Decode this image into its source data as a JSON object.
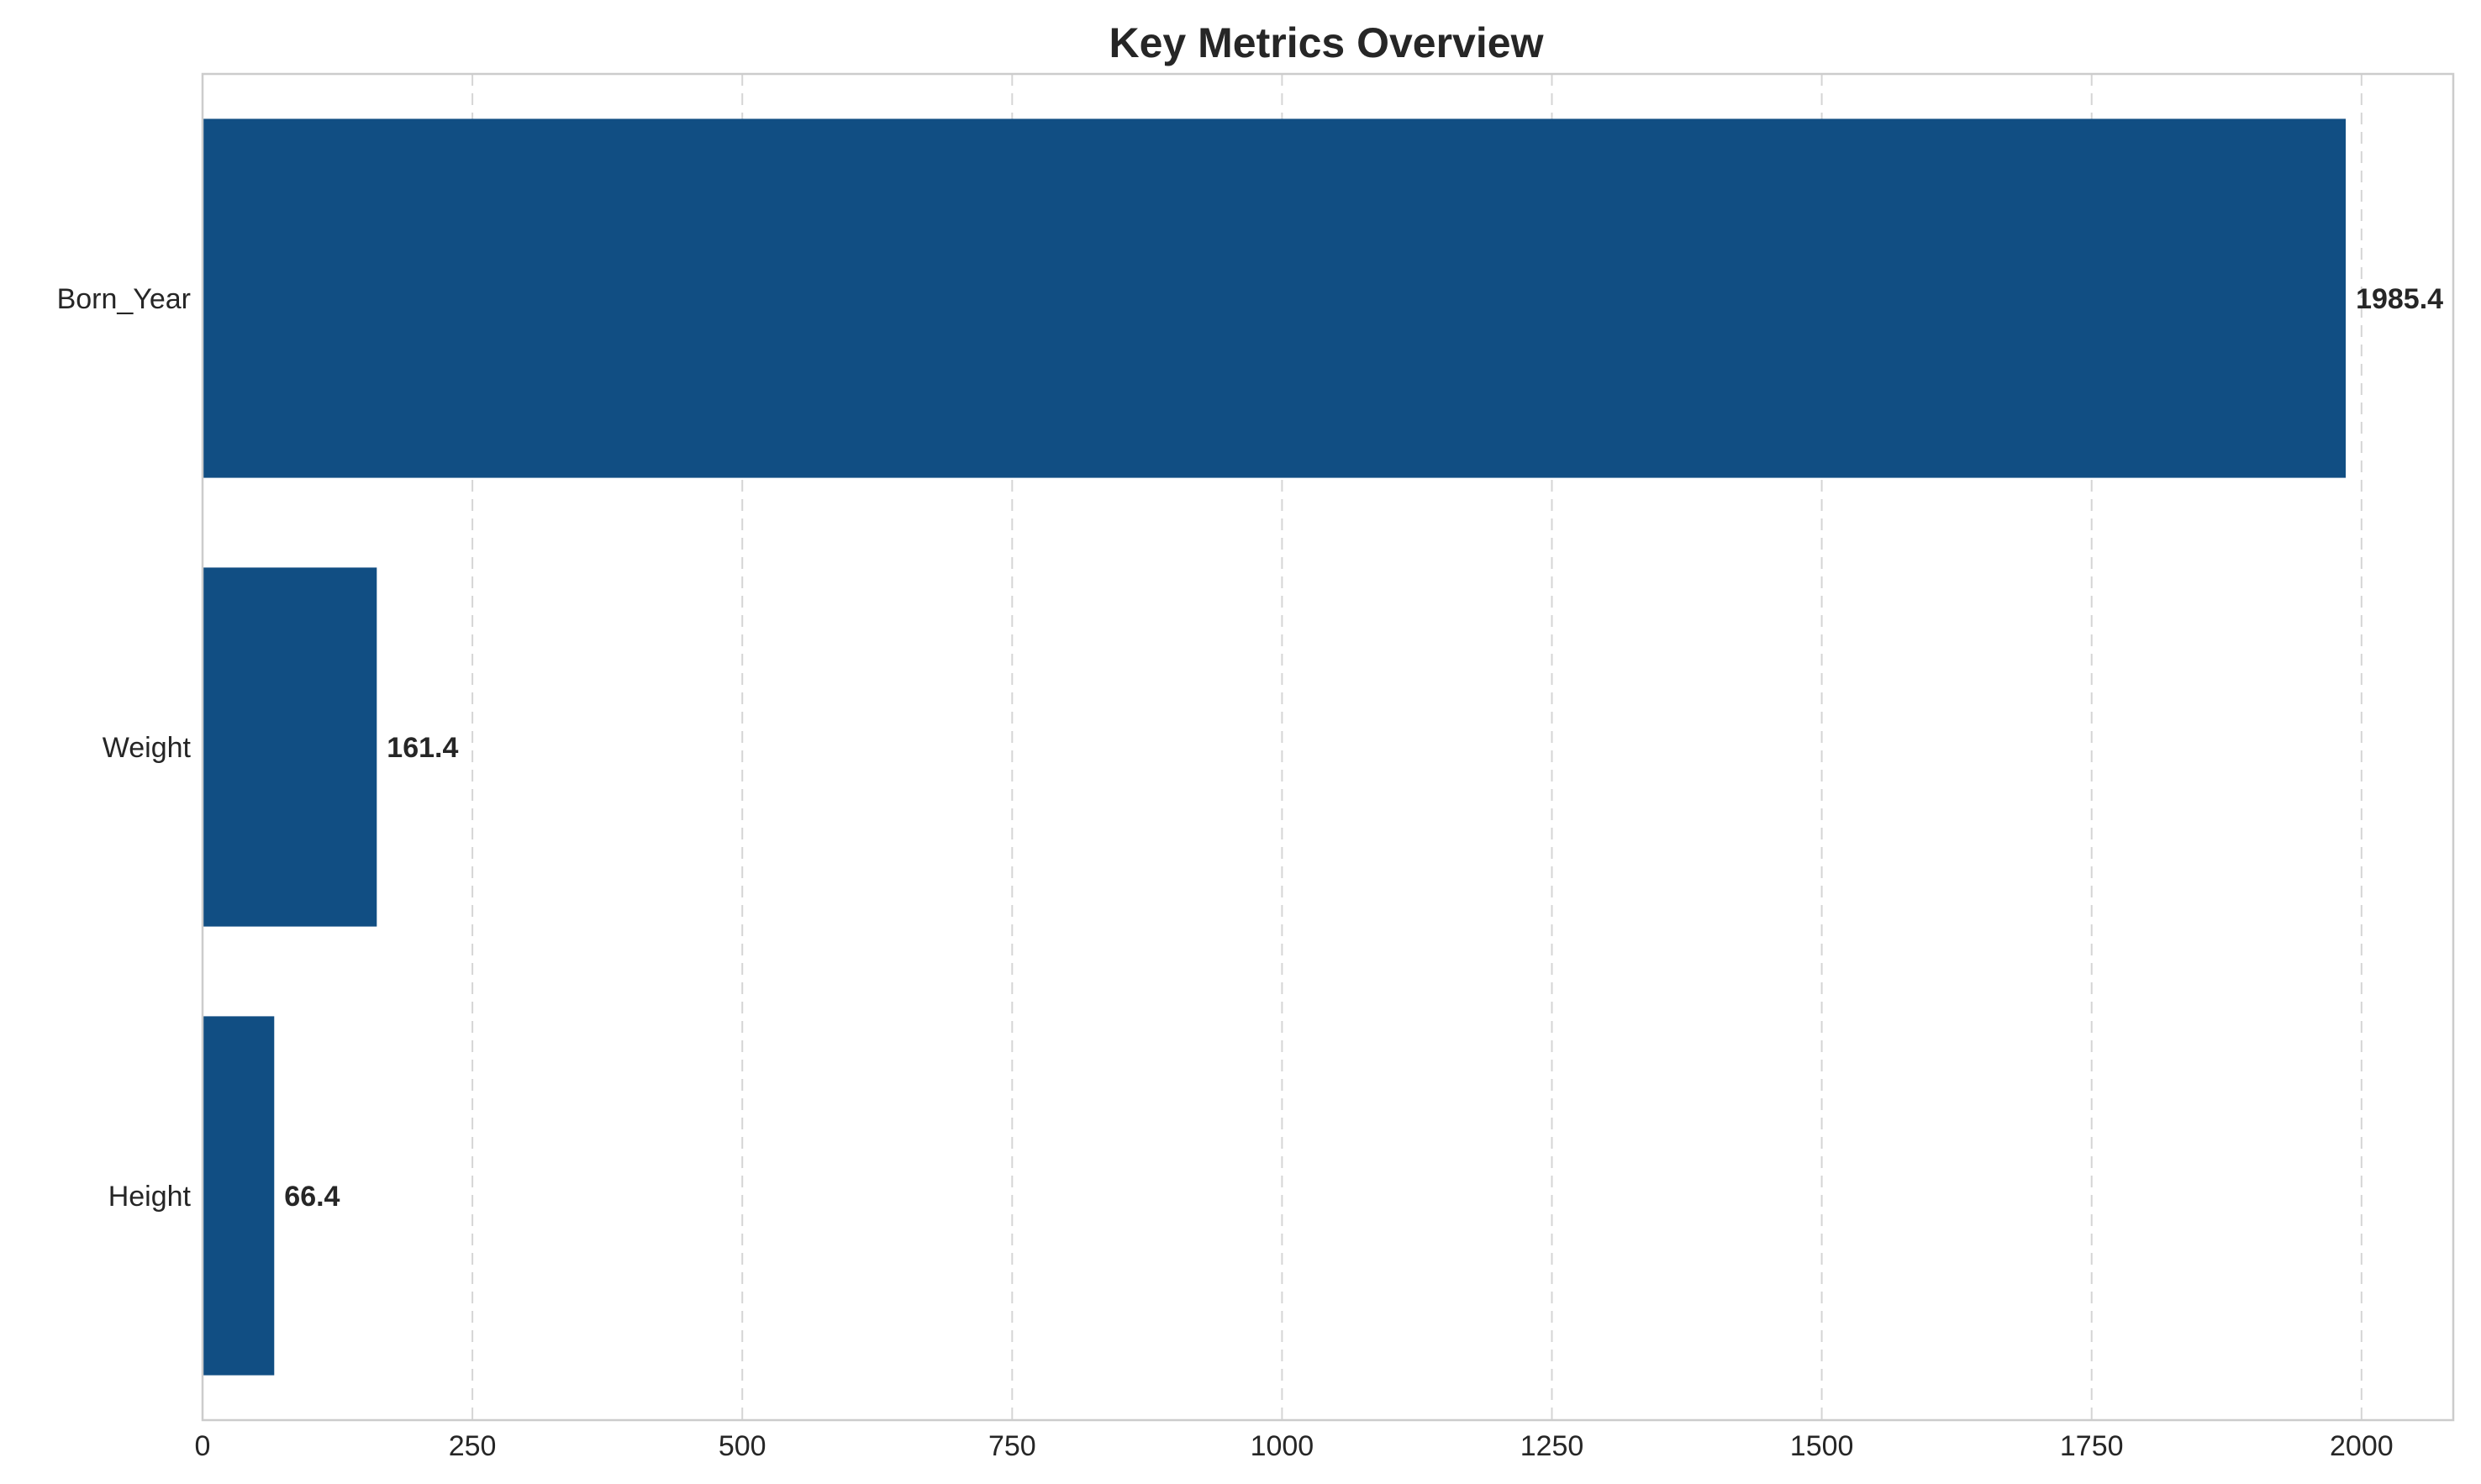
{
  "chart_data": {
    "type": "bar",
    "orientation": "horizontal",
    "title": "Key Metrics Overview",
    "xlabel": "",
    "ylabel": "",
    "categories": [
      "Born_Year",
      "Weight",
      "Height"
    ],
    "values": [
      1985.4,
      161.4,
      66.4
    ],
    "value_labels": [
      "1985.4",
      "161.4",
      "66.4"
    ],
    "xlim": [
      0,
      2085
    ],
    "x_ticks": [
      0,
      250,
      500,
      750,
      1000,
      1250,
      1500,
      1750,
      2000
    ],
    "x_tick_labels": [
      "0",
      "250",
      "500",
      "750",
      "1000",
      "1250",
      "1500",
      "1750",
      "2000"
    ],
    "grid": "x-axis dashed",
    "legend": "none",
    "bar_color": "#114e83"
  }
}
